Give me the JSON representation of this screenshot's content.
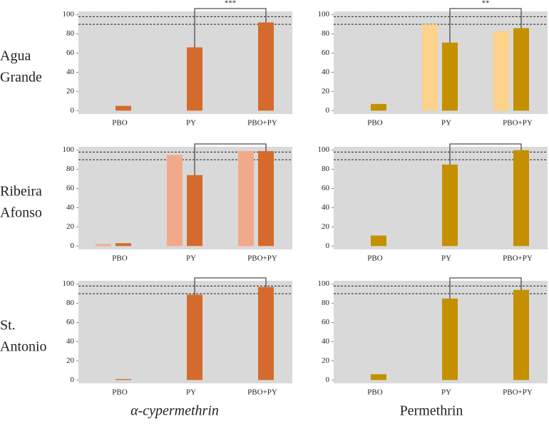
{
  "row_labels": [
    [
      "Agua",
      "Grande"
    ],
    [
      "Ribeira",
      "Afonso"
    ],
    [
      "St.",
      "Antonio"
    ]
  ],
  "column_labels": [
    "α-cypermethrin",
    "Permethrin"
  ],
  "chart_data": [
    {
      "type": "bar",
      "categories": [
        "PBO",
        "PY",
        "PBO+PY"
      ],
      "ylim": [
        -3.5,
        103.5
      ],
      "yticks": [
        0,
        20,
        40,
        60,
        80,
        100
      ],
      "reference_lines": [
        90,
        98
      ],
      "bracket": {
        "label": "***"
      },
      "series": [
        {
          "color": "#d46b2c",
          "values": [
            5,
            66,
            92
          ]
        }
      ]
    },
    {
      "type": "bar",
      "categories": [
        "PBO",
        "PY",
        "PBO+PY"
      ],
      "ylim": [
        -3.5,
        103.5
      ],
      "yticks": [
        0,
        20,
        40,
        60,
        80,
        100
      ],
      "reference_lines": [
        90,
        98
      ],
      "bracket": {
        "label": "**"
      },
      "series": [
        {
          "color": "#fdd28a",
          "values": [
            null,
            90,
            83
          ]
        },
        {
          "color": "#c49000",
          "values": [
            7,
            71,
            86
          ]
        }
      ]
    },
    {
      "type": "bar",
      "categories": [
        "PBO",
        "PY",
        "PBO+PY"
      ],
      "ylim": [
        -3.5,
        103.5
      ],
      "yticks": [
        0,
        20,
        40,
        60,
        80,
        100
      ],
      "reference_lines": [
        90,
        98
      ],
      "bracket": true,
      "series": [
        {
          "color": "#f2a98a",
          "values": [
            2,
            95,
            99
          ]
        },
        {
          "color": "#d46b2c",
          "values": [
            3,
            74,
            99
          ]
        }
      ]
    },
    {
      "type": "bar",
      "categories": [
        "PBO",
        "PY",
        "PBO+PY"
      ],
      "ylim": [
        -3.5,
        103.5
      ],
      "yticks": [
        0,
        20,
        40,
        60,
        80,
        100
      ],
      "reference_lines": [
        90,
        98
      ],
      "bracket": true,
      "series": [
        {
          "color": "#c49000",
          "values": [
            11,
            85,
            100
          ]
        }
      ]
    },
    {
      "type": "bar",
      "categories": [
        "PBO",
        "PY",
        "PBO+PY"
      ],
      "ylim": [
        -3.5,
        103.5
      ],
      "yticks": [
        0,
        20,
        40,
        60,
        80,
        100
      ],
      "reference_lines": [
        90,
        98
      ],
      "bracket": true,
      "series": [
        {
          "color": "#d46b2c",
          "values": [
            1,
            89,
            97
          ]
        }
      ]
    },
    {
      "type": "bar",
      "categories": [
        "PBO",
        "PY",
        "PBO+PY"
      ],
      "ylim": [
        -3.5,
        103.5
      ],
      "yticks": [
        0,
        20,
        40,
        60,
        80,
        100
      ],
      "reference_lines": [
        90,
        98
      ],
      "bracket": true,
      "series": [
        {
          "color": "#c49000",
          "values": [
            6,
            85,
            94
          ]
        }
      ]
    }
  ]
}
